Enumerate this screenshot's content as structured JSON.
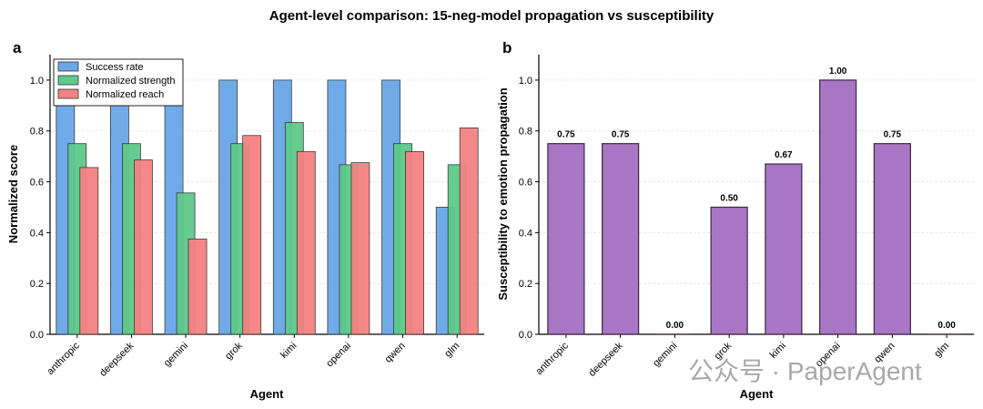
{
  "figure": {
    "title": "Agent-level comparison: 15-neg-model propagation vs susceptibility",
    "watermark": "公众号 · PaperAgent"
  },
  "chart_data": [
    {
      "panel": "a",
      "type": "bar",
      "xlabel": "Agent",
      "ylabel": "Normalized score",
      "categories": [
        "anthropic",
        "deepseek",
        "gemini",
        "grok",
        "kimi",
        "openai",
        "qwen",
        "glm"
      ],
      "ylim": [
        0,
        1.1
      ],
      "yticks": [
        "0.0",
        "0.2",
        "0.4",
        "0.6",
        "0.8",
        "1.0"
      ],
      "grid": true,
      "legend_position": "top-left",
      "series": [
        {
          "name": "Success rate",
          "color": "#6aa6e8",
          "values": [
            1.0,
            1.0,
            1.0,
            1.0,
            1.0,
            1.0,
            1.0,
            0.5
          ]
        },
        {
          "name": "Normalized strength",
          "color": "#5ec98a",
          "values": [
            0.75,
            0.75,
            0.556,
            0.75,
            0.833,
            0.667,
            0.75,
            0.667
          ]
        },
        {
          "name": "Normalized reach",
          "color": "#f48282",
          "values": [
            0.656,
            0.686,
            0.375,
            0.782,
            0.719,
            0.675,
            0.719,
            0.812
          ]
        }
      ]
    },
    {
      "panel": "b",
      "type": "bar",
      "xlabel": "Agent",
      "ylabel": "Susceptibility to emotion propagation",
      "categories": [
        "anthropic",
        "deepseek",
        "gemini",
        "grok",
        "kimi",
        "openai",
        "qwen",
        "glm"
      ],
      "ylim": [
        0,
        1.1
      ],
      "yticks": [
        "0.0",
        "0.2",
        "0.4",
        "0.6",
        "0.8",
        "1.0"
      ],
      "grid": true,
      "color": "#a876c4",
      "values": [
        0.75,
        0.75,
        0.0,
        0.5,
        0.67,
        1.0,
        0.75,
        0.0
      ],
      "data_labels": [
        "0.75",
        "0.75",
        "0.00",
        "0.50",
        "0.67",
        "1.00",
        "0.75",
        "0.00"
      ]
    }
  ]
}
